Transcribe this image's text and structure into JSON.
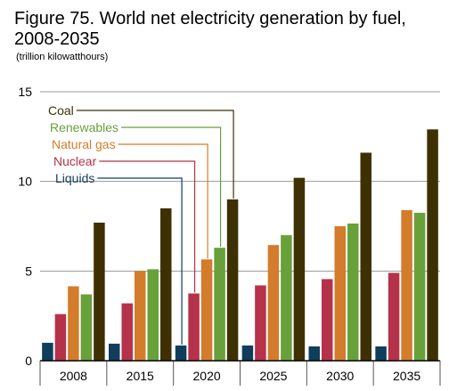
{
  "chart_data": {
    "type": "bar",
    "title": "Figure 75. World net electricity generation by fuel, 2008-2035",
    "units": "(trillion kilowatthours)",
    "categories": [
      "2008",
      "2015",
      "2020",
      "2025",
      "2030",
      "2035"
    ],
    "ylim": [
      0,
      15
    ],
    "yticks": [
      0,
      5,
      10,
      15
    ],
    "grid": true,
    "legend_placement": "top-left, leader lines to 2020 bars",
    "series": [
      {
        "name": "Liquids",
        "color": "#0f3e5c",
        "values": [
          1.0,
          0.95,
          0.85,
          0.85,
          0.8,
          0.8
        ]
      },
      {
        "name": "Nuclear",
        "color": "#b5324a",
        "values": [
          2.6,
          3.2,
          3.75,
          4.2,
          4.55,
          4.9
        ]
      },
      {
        "name": "Natural gas",
        "color": "#d27c2c",
        "values": [
          4.15,
          5.0,
          5.65,
          6.45,
          7.5,
          8.4
        ]
      },
      {
        "name": "Renewables",
        "color": "#68a03a",
        "values": [
          3.7,
          5.1,
          6.3,
          7.0,
          7.65,
          8.25
        ]
      },
      {
        "name": "Coal",
        "color": "#3d3104",
        "values": [
          7.7,
          8.5,
          9.0,
          10.2,
          11.6,
          12.9
        ]
      }
    ],
    "legend_order": [
      "Coal",
      "Renewables",
      "Natural gas",
      "Nuclear",
      "Liquids"
    ]
  }
}
